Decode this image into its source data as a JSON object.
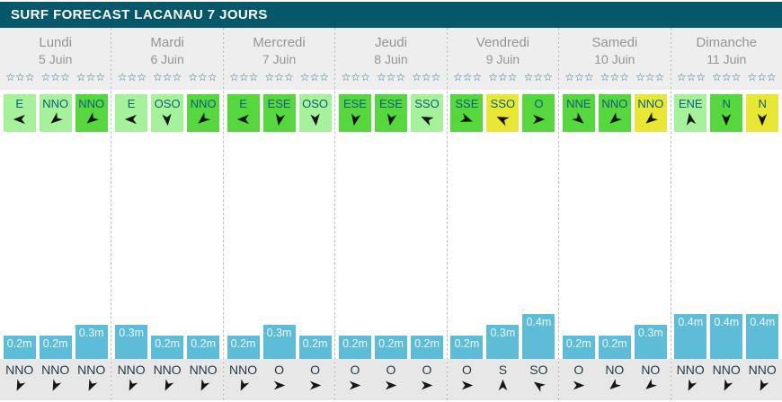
{
  "title": "SURF FORECAST LACANAU 7 JOURS",
  "colors": {
    "titlebar_bg": "#05586a",
    "header_strip_bg": "#eeeeee",
    "bottom_strip_bg": "#e7e7e7",
    "wind_light": "#a6f29b",
    "wind_medium": "#56d73e",
    "wind_yellow": "#e8e834",
    "wind_text": "#0d607b",
    "bar_blue": "#5dbdd9",
    "bar_text": "#eef7fa",
    "star_color": "#1e6b83",
    "day_text": "#959595",
    "arrow_black": "#151515"
  },
  "stars_per_group": 3,
  "star_glyph": "☆",
  "days": [
    {
      "name": "Lundi",
      "date": "5 Juin",
      "star_groups_filled": [
        0,
        0,
        0
      ],
      "wind": [
        {
          "dir": "E",
          "level": "light",
          "rot": 270
        },
        {
          "dir": "NNO",
          "level": "light",
          "rot": 230
        },
        {
          "dir": "NNO",
          "level": "medium",
          "rot": 230
        }
      ],
      "waves": [
        {
          "label": "0.2m",
          "height_m": 0.2,
          "dir": "NNO",
          "rot": 205
        },
        {
          "label": "0.2m",
          "height_m": 0.2,
          "dir": "NNO",
          "rot": 205
        },
        {
          "label": "0.3m",
          "height_m": 0.3,
          "dir": "NNO",
          "rot": 205
        }
      ]
    },
    {
      "name": "Mardi",
      "date": "6 Juin",
      "star_groups_filled": [
        0,
        0,
        0
      ],
      "wind": [
        {
          "dir": "E",
          "level": "light",
          "rot": 270
        },
        {
          "dir": "OSO",
          "level": "light",
          "rot": 175
        },
        {
          "dir": "NNO",
          "level": "medium",
          "rot": 230
        }
      ],
      "waves": [
        {
          "label": "0.3m",
          "height_m": 0.3,
          "dir": "NNO",
          "rot": 205
        },
        {
          "label": "0.2m",
          "height_m": 0.2,
          "dir": "NNO",
          "rot": 205
        },
        {
          "label": "0.2m",
          "height_m": 0.2,
          "dir": "NNO",
          "rot": 205
        }
      ]
    },
    {
      "name": "Mercredi",
      "date": "7 Juin",
      "star_groups_filled": [
        0,
        0,
        0
      ],
      "wind": [
        {
          "dir": "E",
          "level": "medium",
          "rot": 270
        },
        {
          "dir": "ESE",
          "level": "medium",
          "rot": 190
        },
        {
          "dir": "OSO",
          "level": "light",
          "rot": 175
        }
      ],
      "waves": [
        {
          "label": "0.2m",
          "height_m": 0.2,
          "dir": "NNO",
          "rot": 205
        },
        {
          "label": "0.3m",
          "height_m": 0.3,
          "dir": "O",
          "rot": 90
        },
        {
          "label": "0.2m",
          "height_m": 0.2,
          "dir": "O",
          "rot": 90
        }
      ]
    },
    {
      "name": "Jeudi",
      "date": "8 Juin",
      "star_groups_filled": [
        0,
        0,
        0
      ],
      "wind": [
        {
          "dir": "ESE",
          "level": "medium",
          "rot": 190
        },
        {
          "dir": "ESE",
          "level": "medium",
          "rot": 190
        },
        {
          "dir": "SSO",
          "level": "light",
          "rot": 295
        }
      ],
      "waves": [
        {
          "label": "0.2m",
          "height_m": 0.2,
          "dir": "O",
          "rot": 90
        },
        {
          "label": "0.2m",
          "height_m": 0.2,
          "dir": "O",
          "rot": 90
        },
        {
          "label": "0.2m",
          "height_m": 0.2,
          "dir": "O",
          "rot": 90
        }
      ]
    },
    {
      "name": "Vendredi",
      "date": "9 Juin",
      "star_groups_filled": [
        0,
        0,
        0
      ],
      "wind": [
        {
          "dir": "SSE",
          "level": "medium",
          "rot": 110
        },
        {
          "dir": "SSO",
          "level": "yellow",
          "rot": 295
        },
        {
          "dir": "O",
          "level": "medium",
          "rot": 90
        }
      ],
      "waves": [
        {
          "label": "0.2m",
          "height_m": 0.2,
          "dir": "O",
          "rot": 90
        },
        {
          "label": "0.3m",
          "height_m": 0.3,
          "dir": "S",
          "rot": 0
        },
        {
          "label": "0.4m",
          "height_m": 0.4,
          "dir": "SO",
          "rot": 305
        }
      ]
    },
    {
      "name": "Samedi",
      "date": "10 Juin",
      "star_groups_filled": [
        0,
        0,
        0
      ],
      "wind": [
        {
          "dir": "NNE",
          "level": "medium",
          "rot": 130
        },
        {
          "dir": "NNO",
          "level": "medium",
          "rot": 230
        },
        {
          "dir": "NNO",
          "level": "yellow",
          "rot": 230
        }
      ],
      "waves": [
        {
          "label": "0.2m",
          "height_m": 0.2,
          "dir": "O",
          "rot": 90
        },
        {
          "label": "0.2m",
          "height_m": 0.2,
          "dir": "NO",
          "rot": 230
        },
        {
          "label": "0.3m",
          "height_m": 0.3,
          "dir": "NO",
          "rot": 230
        }
      ]
    },
    {
      "name": "Dimanche",
      "date": "11 Juin",
      "star_groups_filled": [
        0,
        0,
        0
      ],
      "wind": [
        {
          "dir": "ENE",
          "level": "light",
          "rot": 350
        },
        {
          "dir": "N",
          "level": "medium",
          "rot": 180
        },
        {
          "dir": "N",
          "level": "yellow",
          "rot": 180
        }
      ],
      "waves": [
        {
          "label": "0.4m",
          "height_m": 0.4,
          "dir": "NNO",
          "rot": 205
        },
        {
          "label": "0.4m",
          "height_m": 0.4,
          "dir": "NNO",
          "rot": 205
        },
        {
          "label": "0.4m",
          "height_m": 0.4,
          "dir": "NNO",
          "rot": 205
        }
      ]
    }
  ]
}
